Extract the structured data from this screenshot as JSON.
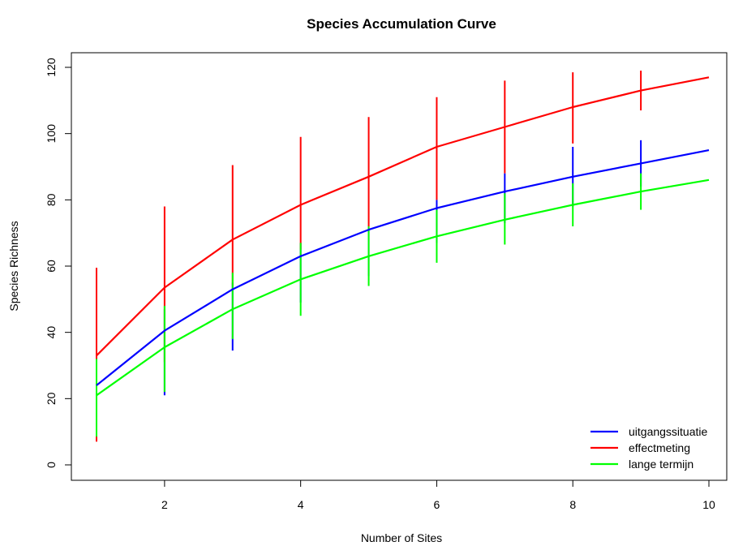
{
  "chart_data": {
    "type": "line",
    "title": "Species Accumulation Curve",
    "xlabel": "Number of Sites",
    "ylabel": "Species Richness",
    "xlim": [
      1,
      10
    ],
    "ylim": [
      0,
      120
    ],
    "x": [
      1,
      2,
      3,
      4,
      5,
      6,
      7,
      8,
      9,
      10
    ],
    "x_ticks": [
      2,
      4,
      6,
      8,
      10
    ],
    "y_ticks": [
      0,
      20,
      40,
      60,
      80,
      100,
      120
    ],
    "x_tick_labels": [
      "2",
      "4",
      "6",
      "8",
      "10"
    ],
    "y_tick_labels": [
      "0",
      "20",
      "40",
      "60",
      "80",
      "100",
      "120"
    ],
    "grid": false,
    "legend_position": "bottom-right",
    "series": [
      {
        "name": "uitgangssituatie",
        "color": "#0000FF",
        "values": [
          24,
          40.5,
          53,
          63,
          71,
          77.5,
          82.5,
          87,
          91,
          95
        ],
        "err_low": [
          10,
          21,
          34.5,
          49,
          57,
          67,
          73,
          78,
          84,
          95
        ],
        "err_high": [
          32,
          47,
          55,
          67,
          71,
          80,
          88,
          96,
          98,
          95
        ]
      },
      {
        "name": "effectmeting",
        "color": "#FF0000",
        "values": [
          33,
          53.5,
          68,
          78.5,
          87,
          96,
          102,
          108,
          113,
          117
        ],
        "err_low": [
          7,
          31,
          54,
          65,
          71,
          80,
          88,
          97,
          107,
          117
        ],
        "err_high": [
          59.5,
          78,
          90.5,
          99,
          105,
          111,
          116,
          118.5,
          119,
          117
        ]
      },
      {
        "name": "lange termijn",
        "color": "#00FF00",
        "values": [
          21,
          35.5,
          47,
          56,
          63,
          69,
          74,
          78.5,
          82.5,
          86
        ],
        "err_low": [
          8.5,
          22,
          38,
          45,
          54,
          61,
          66.5,
          72,
          77,
          86
        ],
        "err_high": [
          32,
          48,
          58,
          67,
          72,
          77,
          82,
          85,
          88,
          86
        ]
      }
    ]
  }
}
